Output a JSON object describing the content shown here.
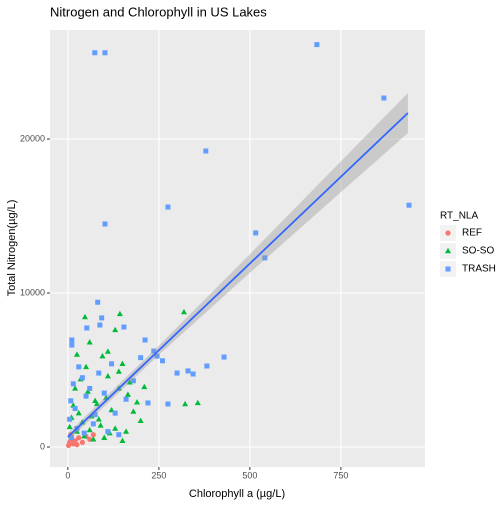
{
  "chart_data": {
    "type": "scatter",
    "title": "Nitrogen and Chlorophyll in US Lakes",
    "x_label": "Chlorophyll a (µg/L)",
    "y_label": "Total Nitrogen(µg/L)",
    "legend_title": "RT_NLA",
    "xlim": [
      -49,
      981
    ],
    "ylim": [
      -1299,
      27078
    ],
    "xticks": [
      0,
      250,
      500,
      750
    ],
    "yticks": [
      0,
      10000,
      20000
    ],
    "grid": true,
    "series": [
      {
        "name": "REF",
        "color": "#F8766D",
        "marker": "circle",
        "x": [
          2,
          5,
          10,
          15,
          20,
          30,
          40,
          50,
          60,
          70,
          8,
          25
        ],
        "values": [
          100,
          300,
          500,
          200,
          400,
          600,
          300,
          700,
          500,
          800,
          800,
          150
        ]
      },
      {
        "name": "SO-SO",
        "color": "#00BA38",
        "marker": "triangle",
        "x": [
          319,
          143,
          47,
          357,
          322,
          130,
          110,
          60,
          95,
          150,
          170,
          140,
          105,
          80,
          120,
          65,
          40,
          90,
          130,
          160,
          200,
          180,
          55,
          35,
          20,
          15,
          10,
          25,
          45,
          70,
          100,
          150,
          5,
          30,
          75,
          110,
          140,
          85,
          60,
          115,
          50,
          25,
          165,
          190,
          210
        ],
        "values": [
          8760,
          8640,
          8440,
          2860,
          2790,
          7600,
          6200,
          6800,
          5900,
          5400,
          4200,
          3800,
          3200,
          2800,
          2400,
          2000,
          1600,
          1400,
          1200,
          1000,
          1700,
          2300,
          3600,
          4400,
          3800,
          2700,
          1900,
          1000,
          700,
          500,
          600,
          400,
          1300,
          2200,
          3000,
          4600,
          4900,
          1800,
          1100,
          900,
          5200,
          6000,
          3400,
          2900,
          3900
        ]
      },
      {
        "name": "TRASH",
        "color": "#619CFF",
        "marker": "square",
        "x": [
          74,
          102,
          684,
          868,
          937,
          379,
          275,
          102,
          516,
          541,
          82,
          429,
          382,
          330,
          344,
          275,
          220,
          11,
          11,
          52,
          212,
          236,
          154,
          88,
          93,
          200,
          180,
          120,
          30,
          15,
          40,
          8,
          20,
          60,
          100,
          130,
          160,
          5,
          25,
          45,
          70,
          110,
          140,
          10,
          50,
          85,
          75,
          245,
          260,
          300
        ],
        "values": [
          25600,
          25600,
          26130,
          22660,
          15700,
          19220,
          15580,
          14480,
          13900,
          12280,
          9400,
          5840,
          5260,
          4940,
          4740,
          2790,
          2860,
          6950,
          6620,
          7730,
          6950,
          6230,
          7790,
          7920,
          8380,
          5800,
          4300,
          5400,
          5200,
          4100,
          4500,
          3000,
          2500,
          3800,
          3500,
          2200,
          3100,
          1800,
          1200,
          900,
          1500,
          1000,
          800,
          600,
          3300,
          4800,
          2100,
          5900,
          5600,
          4800
        ]
      }
    ],
    "trend": {
      "color": "#3366FF",
      "band_color": "#999999",
      "x": [
        0,
        250,
        500,
        750,
        934
      ],
      "values": [
        650,
        6280,
        11915,
        17550,
        21690
      ],
      "lower": [
        400,
        5980,
        11315,
        16550,
        20390
      ],
      "upper": [
        900,
        6580,
        12515,
        18550,
        22990
      ]
    }
  }
}
